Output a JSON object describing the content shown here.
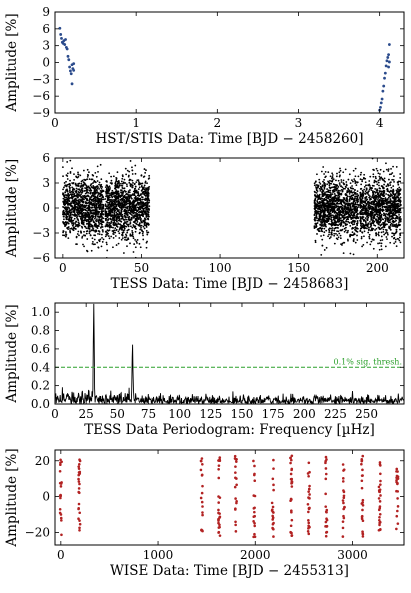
{
  "colors": {
    "hst": "#2b4b8c",
    "tess": "#000000",
    "periodogram": "#000000",
    "threshold": "#2ca02c",
    "wise": "#b22222"
  },
  "chart_data": [
    {
      "type": "scatter",
      "xlabel": "HST/STIS Data: Time [BJD − 2458260]",
      "ylabel": "Amplitude [%]",
      "xlim": [
        0,
        4.3
      ],
      "ylim": [
        -9,
        9
      ],
      "xticks": [
        0,
        1,
        2,
        3,
        4
      ],
      "yticks": [
        -9,
        -6,
        -3,
        0,
        3,
        6,
        9
      ],
      "grid": false,
      "series": [
        {
          "points": [
            [
              0.06,
              6.1
            ],
            [
              0.07,
              5.0
            ],
            [
              0.08,
              4.3
            ],
            [
              0.09,
              3.6
            ],
            [
              0.1,
              3.4
            ],
            [
              0.11,
              3.9
            ],
            [
              0.12,
              3.2
            ],
            [
              0.13,
              4.1
            ],
            [
              0.14,
              2.7
            ],
            [
              0.15,
              2.4
            ],
            [
              0.16,
              1.1
            ],
            [
              0.17,
              0.5
            ],
            [
              0.18,
              -0.8
            ],
            [
              0.19,
              -1.5
            ],
            [
              0.2,
              -2.0
            ],
            [
              0.21,
              -0.4
            ],
            [
              0.22,
              -1.1
            ],
            [
              0.21,
              -3.8
            ],
            [
              0.23,
              -0.2
            ],
            [
              0.23,
              -1.4
            ],
            [
              4.0,
              -8.5
            ],
            [
              4.01,
              -8.0
            ],
            [
              4.02,
              -7.2
            ],
            [
              4.03,
              -6.5
            ],
            [
              4.04,
              -5.1
            ],
            [
              4.05,
              -4.2
            ],
            [
              4.06,
              -2.8
            ],
            [
              4.07,
              -1.9
            ],
            [
              4.08,
              -0.6
            ],
            [
              4.09,
              0.3
            ],
            [
              4.1,
              0.9
            ],
            [
              4.11,
              1.4
            ],
            [
              4.12,
              3.2
            ],
            [
              4.12,
              0.1
            ],
            [
              4.11,
              -0.8
            ]
          ]
        }
      ]
    },
    {
      "type": "scatter",
      "xlabel": "TESS Data: Time [BJD − 2458683]",
      "ylabel": "Amplitude [%]",
      "xlim": [
        -5,
        217
      ],
      "ylim": [
        -6,
        6
      ],
      "xticks": [
        0,
        50,
        100,
        150,
        200
      ],
      "yticks": [
        -6,
        -3,
        0,
        3,
        6
      ],
      "grid": false,
      "segments": [
        [
          0,
          26
        ],
        [
          27,
          55
        ],
        [
          160,
          188
        ],
        [
          189,
          215
        ]
      ],
      "noise_sigma": 1.8
    },
    {
      "type": "line",
      "xlabel": "TESS Data Periodogram: Frequency [µHz]",
      "ylabel": "Amplitude [%]",
      "xlim": [
        0,
        280
      ],
      "ylim": [
        0,
        1.1
      ],
      "xticks": [
        0,
        25,
        50,
        75,
        100,
        125,
        150,
        175,
        200,
        225,
        250
      ],
      "yticks": [
        0.0,
        0.2,
        0.4,
        0.6,
        0.8,
        1.0
      ],
      "grid": false,
      "peaks": [
        {
          "x": 31.1,
          "y": 1.03
        },
        {
          "x": 62.2,
          "y": 0.62
        }
      ],
      "threshold": {
        "y": 0.4,
        "label": "0.1% sig. thresh."
      }
    },
    {
      "type": "scatter",
      "xlabel": "WISE Data: Time [BJD − 2455313]",
      "ylabel": "Amplitude [%]",
      "xlim": [
        -60,
        3530
      ],
      "ylim": [
        -27,
        26
      ],
      "xticks": [
        0,
        1000,
        2000,
        3000
      ],
      "yticks": [
        -20,
        0,
        20
      ],
      "grid": false,
      "visits": [
        0,
        190,
        1450,
        1630,
        1800,
        1990,
        2180,
        2370,
        2550,
        2730,
        2910,
        3100,
        3280,
        3460
      ]
    }
  ]
}
